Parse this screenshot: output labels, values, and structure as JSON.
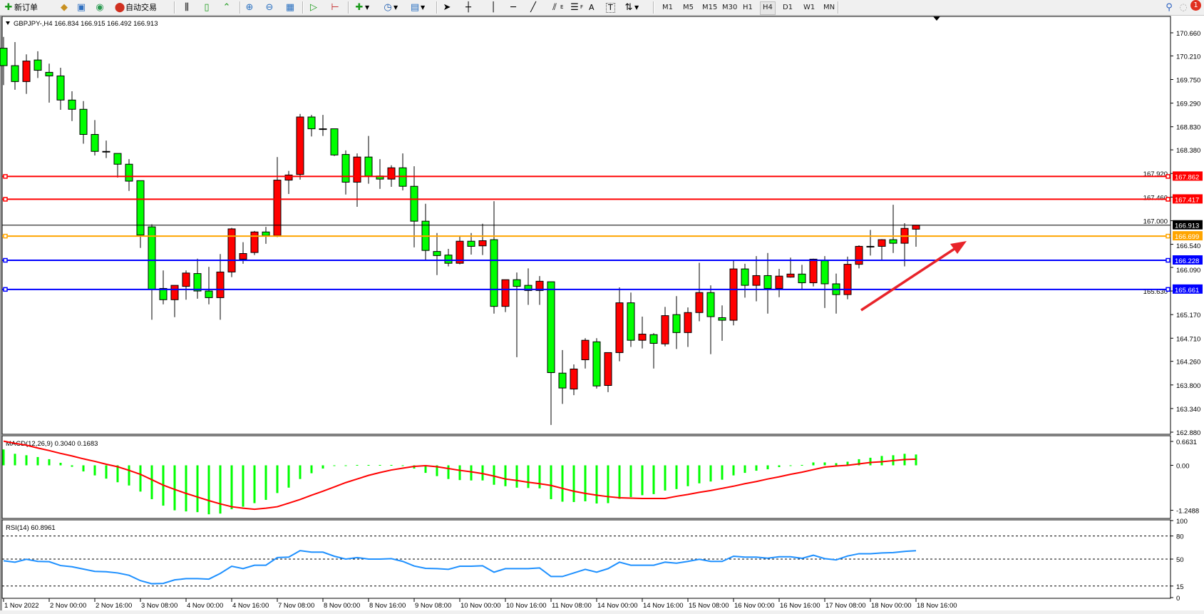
{
  "toolbar": {
    "new_order": "新订单",
    "auto_trading": "自动交易",
    "timeframes": [
      "M1",
      "M5",
      "M15",
      "M30",
      "H1",
      "H4",
      "D1",
      "W1",
      "MN"
    ],
    "selected_timeframe": "H4",
    "text_tool_a": "A",
    "text_tool_t": "T",
    "fib_e": "E",
    "fib_f": "F",
    "notification_count": "1"
  },
  "chart": {
    "header": "GBPJPY-,H4  166.834 166.915 166.492 166.913",
    "colors": {
      "bull": "#ff0000",
      "bear": "#00ff00",
      "macd_hist": "#00ff00",
      "signal": "#ff0000",
      "rsi": "#1e90ff"
    }
  },
  "chart_data": {
    "type": "candlestick",
    "symbol": "GBPJPY-",
    "timeframe": "H4",
    "price_ticks": [
      "170.660",
      "170.210",
      "169.750",
      "169.290",
      "168.830",
      "168.380",
      "167.920",
      "167.460",
      "167.000",
      "166.540",
      "166.090",
      "165.630",
      "165.170",
      "164.710",
      "164.260",
      "163.800",
      "163.340",
      "162.880"
    ],
    "ylim": [
      162.88,
      170.66
    ],
    "time_labels": [
      "1 Nov 2022",
      "2 Nov 00:00",
      "2 Nov 16:00",
      "3 Nov 08:00",
      "4 Nov 00:00",
      "4 Nov 16:00",
      "7 Nov 08:00",
      "8 Nov 00:00",
      "8 Nov 16:00",
      "9 Nov 08:00",
      "10 Nov 00:00",
      "10 Nov 16:00",
      "11 Nov 08:00",
      "14 Nov 00:00",
      "14 Nov 16:00",
      "15 Nov 08:00",
      "16 Nov 00:00",
      "16 Nov 16:00",
      "17 Nov 08:00",
      "18 Nov 00:00",
      "18 Nov 16:00"
    ],
    "ohlc": [
      [
        170.36,
        170.58,
        169.64,
        170.02
      ],
      [
        170.02,
        170.48,
        169.55,
        169.71
      ],
      [
        169.71,
        170.24,
        169.47,
        170.11
      ],
      [
        170.13,
        170.3,
        169.78,
        169.93
      ],
      [
        169.89,
        170.06,
        169.3,
        169.82
      ],
      [
        169.82,
        169.98,
        169.16,
        169.35
      ],
      [
        169.35,
        169.52,
        168.94,
        169.17
      ],
      [
        169.17,
        169.33,
        168.5,
        168.68
      ],
      [
        168.68,
        168.96,
        168.27,
        168.35
      ],
      [
        168.35,
        168.56,
        168.22,
        168.34
      ],
      [
        168.31,
        168.31,
        167.84,
        168.1
      ],
      [
        168.1,
        168.2,
        167.58,
        167.77
      ],
      [
        167.78,
        167.78,
        166.47,
        166.72
      ],
      [
        166.88,
        166.93,
        165.07,
        165.66
      ],
      [
        165.68,
        166.03,
        165.37,
        165.46
      ],
      [
        165.46,
        165.74,
        165.12,
        165.74
      ],
      [
        165.72,
        166.03,
        165.46,
        165.98
      ],
      [
        165.97,
        166.26,
        165.48,
        165.63
      ],
      [
        165.63,
        166.1,
        165.37,
        165.5
      ],
      [
        165.5,
        166.35,
        165.07,
        166.0
      ],
      [
        166.0,
        166.86,
        165.9,
        166.84
      ],
      [
        166.25,
        166.58,
        166.16,
        166.36
      ],
      [
        166.38,
        166.8,
        166.33,
        166.78
      ],
      [
        166.78,
        166.88,
        166.55,
        166.71
      ],
      [
        166.71,
        168.24,
        166.68,
        167.79
      ],
      [
        167.79,
        167.97,
        167.52,
        167.89
      ],
      [
        167.9,
        169.08,
        167.8,
        169.02
      ],
      [
        169.02,
        169.06,
        168.64,
        168.79
      ],
      [
        168.79,
        169.06,
        168.65,
        168.78
      ],
      [
        168.79,
        168.79,
        168.26,
        168.28
      ],
      [
        168.29,
        168.37,
        167.51,
        167.75
      ],
      [
        167.75,
        168.31,
        167.27,
        168.24
      ],
      [
        168.24,
        168.65,
        167.72,
        167.87
      ],
      [
        167.87,
        168.2,
        167.62,
        167.81
      ],
      [
        167.81,
        168.08,
        167.66,
        168.03
      ],
      [
        168.03,
        168.31,
        167.59,
        167.67
      ],
      [
        167.67,
        168.06,
        166.48,
        166.99
      ],
      [
        166.99,
        167.33,
        166.24,
        166.42
      ],
      [
        166.4,
        166.76,
        165.94,
        166.32
      ],
      [
        166.33,
        166.45,
        166.11,
        166.17
      ],
      [
        166.17,
        166.69,
        166.15,
        166.6
      ],
      [
        166.6,
        166.76,
        166.34,
        166.5
      ],
      [
        166.51,
        166.94,
        166.33,
        166.61
      ],
      [
        166.63,
        167.38,
        165.19,
        165.33
      ],
      [
        165.33,
        165.85,
        165.22,
        165.85
      ],
      [
        165.85,
        165.99,
        164.34,
        165.72
      ],
      [
        165.74,
        166.07,
        165.36,
        165.64
      ],
      [
        165.64,
        165.92,
        165.36,
        165.82
      ],
      [
        165.81,
        165.81,
        163.02,
        164.04
      ],
      [
        164.03,
        164.48,
        163.43,
        163.74
      ],
      [
        163.72,
        164.2,
        163.6,
        164.11
      ],
      [
        164.29,
        164.71,
        164.12,
        164.67
      ],
      [
        164.64,
        164.71,
        163.73,
        163.78
      ],
      [
        163.79,
        164.43,
        163.66,
        164.43
      ],
      [
        164.43,
        165.7,
        164.26,
        165.4
      ],
      [
        165.4,
        165.6,
        164.54,
        164.67
      ],
      [
        164.67,
        165.13,
        164.51,
        164.79
      ],
      [
        164.78,
        164.81,
        164.12,
        164.61
      ],
      [
        164.6,
        165.32,
        164.55,
        165.15
      ],
      [
        165.17,
        165.53,
        164.5,
        164.82
      ],
      [
        164.82,
        165.31,
        164.54,
        165.21
      ],
      [
        165.21,
        166.18,
        165.04,
        165.6
      ],
      [
        165.6,
        165.74,
        164.4,
        165.13
      ],
      [
        165.11,
        165.35,
        164.66,
        165.06
      ],
      [
        165.06,
        166.23,
        164.96,
        166.06
      ],
      [
        166.06,
        166.16,
        165.5,
        165.74
      ],
      [
        165.74,
        166.31,
        165.43,
        165.93
      ],
      [
        165.93,
        166.37,
        165.19,
        165.68
      ],
      [
        165.68,
        166.06,
        165.51,
        165.92
      ],
      [
        165.9,
        166.28,
        165.89,
        165.96
      ],
      [
        165.96,
        166.14,
        165.67,
        165.79
      ],
      [
        165.79,
        166.26,
        165.72,
        166.25
      ],
      [
        166.22,
        166.31,
        165.3,
        165.77
      ],
      [
        165.77,
        165.97,
        165.19,
        165.56
      ],
      [
        165.56,
        166.3,
        165.47,
        166.15
      ],
      [
        166.15,
        166.52,
        166.07,
        166.5
      ],
      [
        166.5,
        166.82,
        166.32,
        166.5
      ],
      [
        166.5,
        166.64,
        166.24,
        166.63
      ],
      [
        166.63,
        167.31,
        166.37,
        166.56
      ],
      [
        166.56,
        166.95,
        166.11,
        166.85
      ],
      [
        166.834,
        166.915,
        166.492,
        166.913
      ]
    ],
    "hlines": [
      {
        "price": "167.862",
        "color": "#ff0000"
      },
      {
        "price": "167.417",
        "color": "#ff0000"
      },
      {
        "price": "166.913",
        "color": "#000000",
        "bid": true
      },
      {
        "price": "166.699",
        "color": "#ffa500"
      },
      {
        "price": "166.228",
        "color": "#0000ff"
      },
      {
        "price": "165.661",
        "color": "#0000ff"
      }
    ],
    "macd": {
      "title": "MACD(12,26,9) 0.3040 0.1683",
      "ticks": [
        "0.6631",
        "0.00",
        "-1.2488"
      ],
      "histogram": [
        0.44,
        0.32,
        0.28,
        0.23,
        0.17,
        0.07,
        -0.04,
        -0.17,
        -0.28,
        -0.37,
        -0.47,
        -0.56,
        -0.73,
        -0.94,
        -1.12,
        -1.25,
        -1.28,
        -1.3,
        -1.36,
        -1.34,
        -1.22,
        -1.15,
        -1.05,
        -0.96,
        -0.77,
        -0.62,
        -0.38,
        -0.22,
        -0.09,
        -0.01,
        0.0,
        0.01,
        0.01,
        0.01,
        0.01,
        0.0,
        -0.09,
        -0.21,
        -0.3,
        -0.38,
        -0.41,
        -0.42,
        -0.42,
        -0.54,
        -0.58,
        -0.62,
        -0.63,
        -0.64,
        -0.94,
        -1.01,
        -1.02,
        -1.0,
        -1.06,
        -1.05,
        -0.93,
        -0.88,
        -0.83,
        -0.8,
        -0.7,
        -0.66,
        -0.58,
        -0.5,
        -0.45,
        -0.4,
        -0.28,
        -0.21,
        -0.15,
        -0.11,
        -0.05,
        -0.01,
        0.01,
        0.08,
        0.08,
        0.06,
        0.1,
        0.17,
        0.21,
        0.26,
        0.28,
        0.32,
        0.3
      ],
      "signal": [
        0.67,
        0.61,
        0.56,
        0.48,
        0.41,
        0.33,
        0.26,
        0.18,
        0.11,
        0.03,
        -0.04,
        -0.14,
        -0.25,
        -0.4,
        -0.55,
        -0.67,
        -0.78,
        -0.88,
        -0.98,
        -1.07,
        -1.15,
        -1.19,
        -1.22,
        -1.19,
        -1.15,
        -1.05,
        -0.95,
        -0.83,
        -0.72,
        -0.6,
        -0.48,
        -0.38,
        -0.28,
        -0.2,
        -0.13,
        -0.08,
        -0.03,
        -0.01,
        -0.04,
        -0.09,
        -0.14,
        -0.18,
        -0.23,
        -0.3,
        -0.38,
        -0.42,
        -0.47,
        -0.51,
        -0.56,
        -0.64,
        -0.72,
        -0.78,
        -0.83,
        -0.87,
        -0.9,
        -0.91,
        -0.92,
        -0.92,
        -0.92,
        -0.86,
        -0.81,
        -0.75,
        -0.7,
        -0.64,
        -0.58,
        -0.51,
        -0.45,
        -0.38,
        -0.32,
        -0.25,
        -0.19,
        -0.12,
        -0.05,
        -0.02,
        0.0,
        0.04,
        0.08,
        0.1,
        0.13,
        0.16,
        0.17
      ]
    },
    "rsi": {
      "title": "RSI(14) 60.8961",
      "ticks": [
        "100",
        "80",
        "50",
        "15",
        "0"
      ],
      "levels": [
        80,
        50,
        15
      ],
      "values": [
        47.8,
        46,
        49.7,
        47,
        46.6,
        41.6,
        40,
        37,
        34,
        33.6,
        32,
        29,
        22,
        18,
        18.4,
        23,
        24.6,
        24.6,
        24,
        31.4,
        40.7,
        37.6,
        42,
        42,
        52,
        52.5,
        61,
        59,
        59,
        53.7,
        50,
        52,
        50,
        50,
        50.6,
        47,
        41,
        38,
        37.6,
        36.7,
        40.7,
        40.7,
        41.3,
        33,
        37.6,
        37.6,
        37.6,
        38.5,
        27.4,
        27.4,
        32,
        36.7,
        33,
        37.6,
        46,
        42,
        42,
        42,
        46,
        44.7,
        47,
        49.7,
        47,
        47,
        53.7,
        52.5,
        52.5,
        51.2,
        53,
        53,
        51,
        55,
        50.6,
        49,
        54,
        57,
        57,
        58,
        58.4,
        60,
        60.9
      ]
    }
  }
}
